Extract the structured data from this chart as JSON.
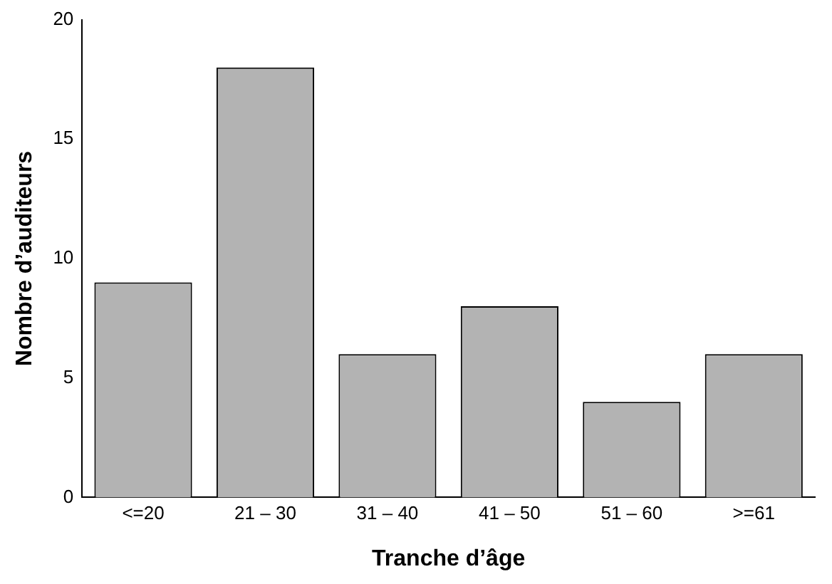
{
  "chart_data": {
    "type": "bar",
    "xlabel": "Tranche d’âge",
    "ylabel": "Nombre d’auditeurs",
    "categories": [
      "<=20",
      "21 – 30",
      "31 – 40",
      "41 – 50",
      "51 – 60",
      ">=61"
    ],
    "values": [
      9,
      18,
      6,
      8,
      4,
      6
    ],
    "color": "#b3b3b3",
    "ylim": [
      0,
      20
    ],
    "yticks": [
      0,
      5,
      10,
      15,
      20
    ],
    "grid": false,
    "legend": false
  }
}
